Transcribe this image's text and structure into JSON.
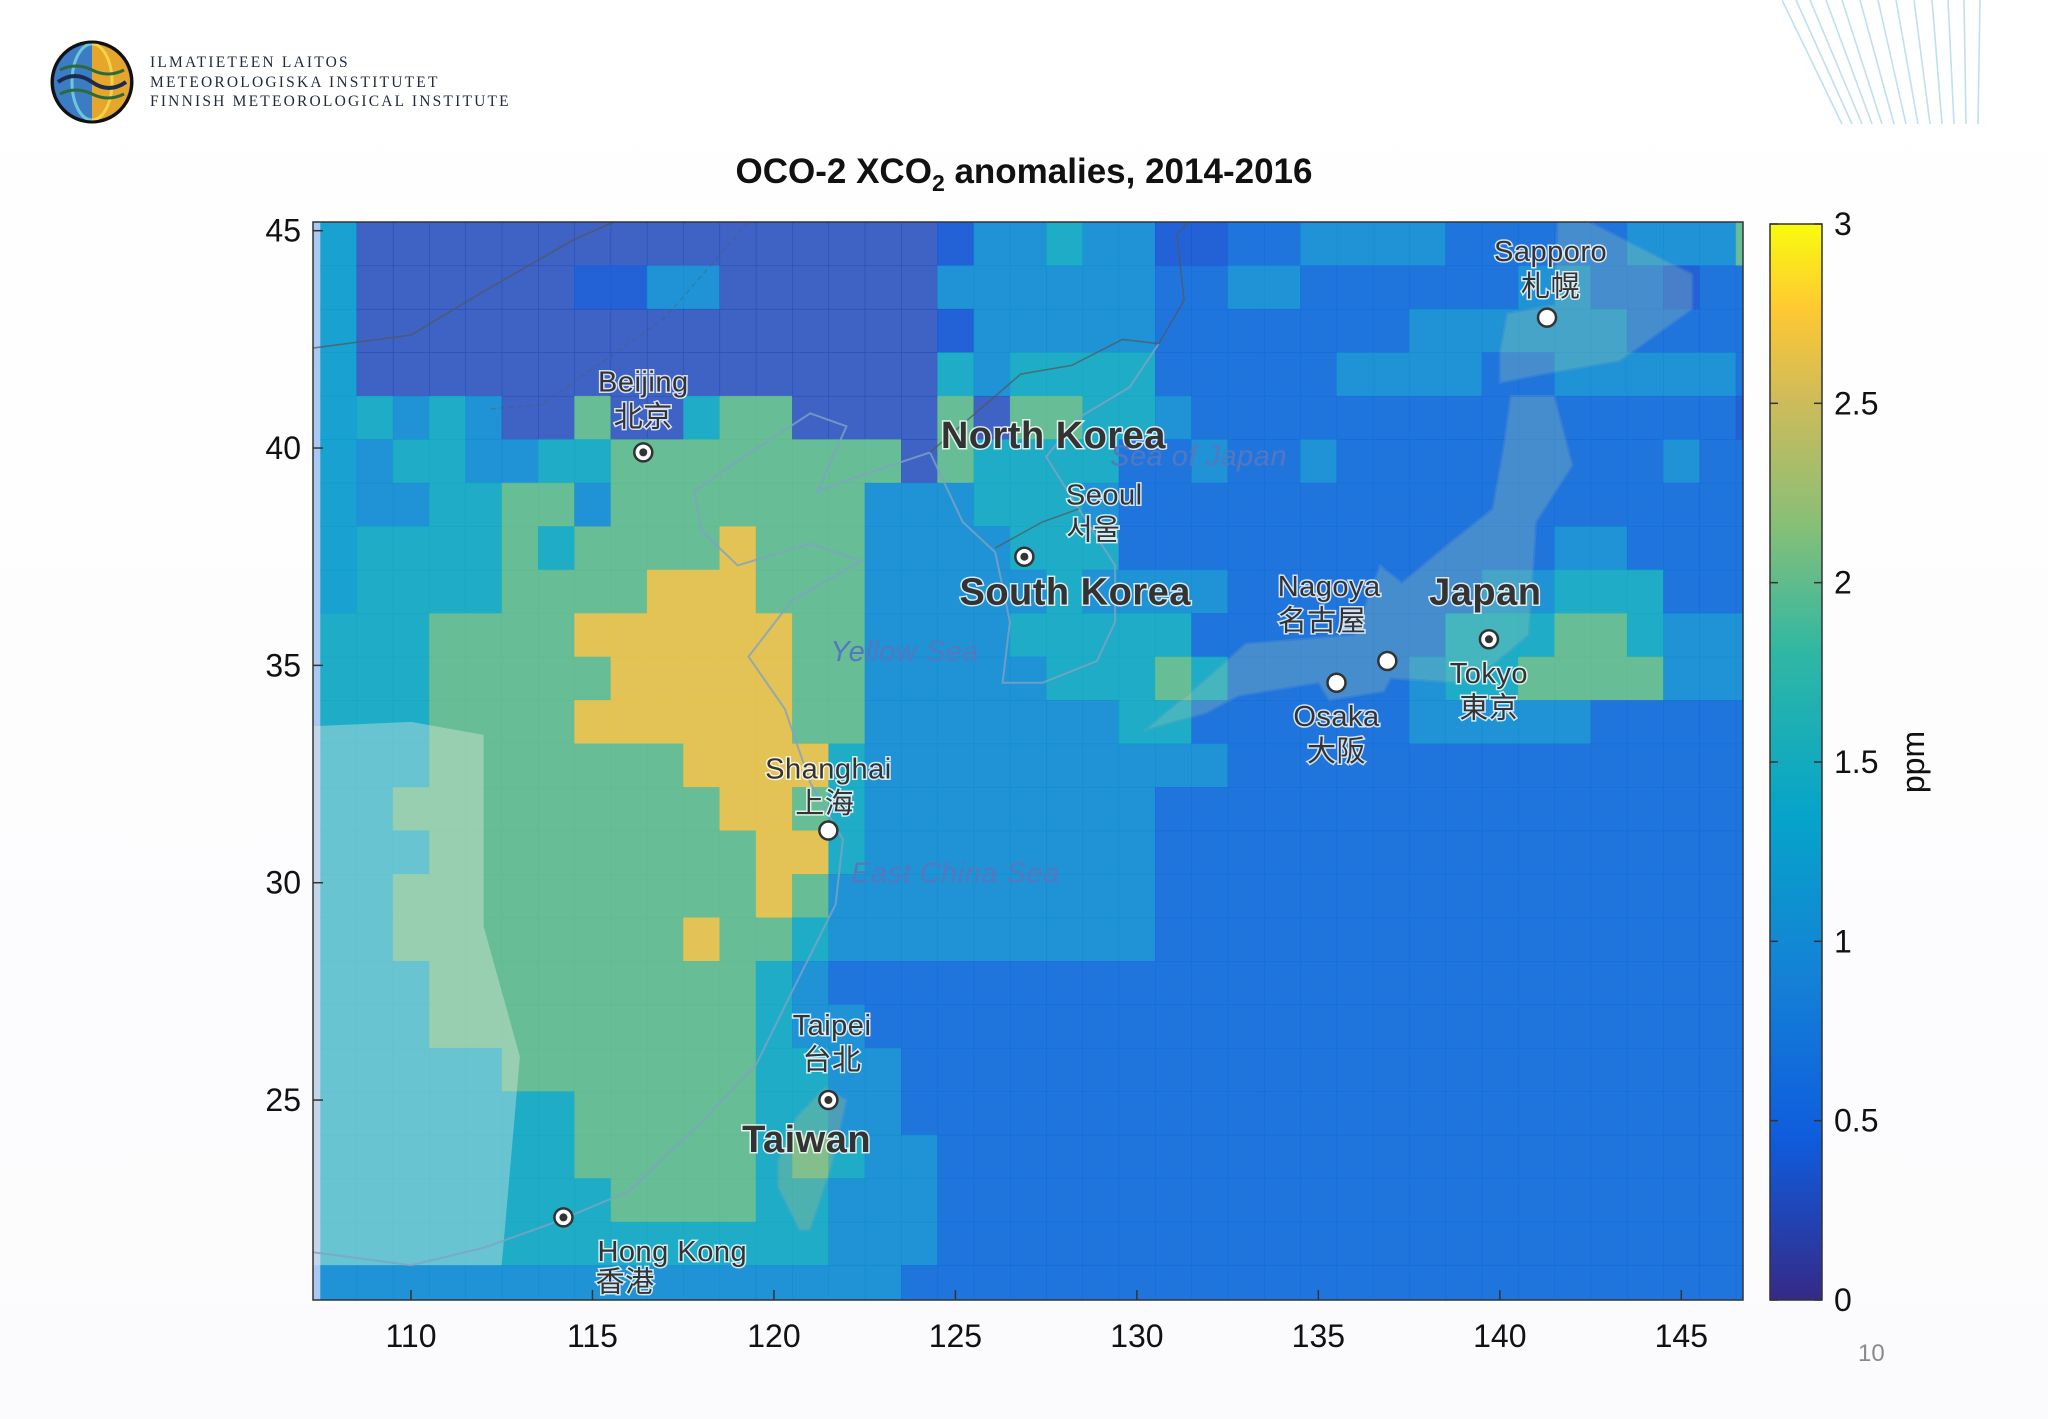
{
  "org": {
    "line1": "ILMATIETEEN LAITOS",
    "line2": "METEOROLOGISKA INSTITUTET",
    "line3": "FINNISH METEOROLOGICAL INSTITUTE",
    "logo_icon": "fmi-globe-logo-icon"
  },
  "chart_data": {
    "type": "heatmap",
    "title_main": "OCO-2 XCO",
    "title_sub": "2",
    "title_rest": " anomalies, 2014-2016",
    "x_ticks": [
      110,
      115,
      120,
      125,
      130,
      135,
      140,
      145
    ],
    "y_ticks": [
      25,
      30,
      35,
      40,
      45
    ],
    "xlim": [
      107.3,
      146.7
    ],
    "ylim": [
      20.4,
      45.2
    ],
    "colorbar": {
      "label": "ppm",
      "range": [
        0,
        3
      ],
      "ticks": [
        {
          "value": 0,
          "label": "0"
        },
        {
          "value": 0.5,
          "label": "0.5"
        },
        {
          "value": 1,
          "label": "1"
        },
        {
          "value": 1.5,
          "label": "1.5"
        },
        {
          "value": 2,
          "label": "2"
        },
        {
          "value": 2.5,
          "label": "2.5"
        },
        {
          "value": 3,
          "label": "3"
        }
      ],
      "colormap": "parula"
    },
    "grid_resolution_deg": 1,
    "color_field_rows": [
      "SXXXXXXXXXXXXXXXXDFFGFFDDEEFFFFEEEEEFFFHF",
      "SXXXXXXDDFFXXXXXXFFFFFFEEFFEEEEEEFFEEDEEF",
      "SXXXXXXXXXXXXXXXXDFFFFFEEEEEEEFFFFFFEEEEH",
      "SXXXXXXXXXXXXXXXXGFGGGGEEEEEFFFFEEFFFFFEG",
      "SGFGFXXHXXGHHXXXXHXHHGGFEEEEEEEEEEEEEEEDG",
      "SFGGFFGGHHHHHHHHXHGGGGEEFEEFEEEEEEEEEFEEE",
      "SFFGGHHFHHHHHHHFFFGGGFEEEEEEEEEEEEEEEEEEF",
      "SGGGGHGHHHHIHHHFFFFGGGEEEEEEEEEEEEFFEEEEF",
      "SGGGGHHHHIIIHHHFFFFFGFFFFEEEEEEEFFGGGEEEE",
      "GGGHHHHIIIIIIHHFFFFGGGGGEEEEEEEGGGHHGFFFE",
      "GGGHHHHHIIIIIHHFFFFFGGGHGEEEEEFGGHHHHFFFE",
      "GGGHHHHIIIIIIHHFFFFFFFGGEEEEEEFFFFFEEEEEE",
      "GGGHHHHHHHIIIIGFFFFFFFFFFEEEEEEEEEEEEEEEE",
      "GGHHHHHHHHHIIHGFFFFFFFFEEEEEEEEEEEEEEEEEE",
      "GGGHHHHHHHHHIIGFFFFFFFFEEEEEEEEEEEEEEEEEE",
      "GGHHHHHHHHHHIHFFFFFFFFFEEEEEEEEEEEEEEEEEE",
      "GGHHHHHHHHIHHGFFFFFFFFFEEEEEEEEEEEEEEEEEE",
      "GGGHHHHHHHHHGFEEEEEEEEEEEEEEEEEEEEEEEEEEE",
      "GGGHHHHHHHHHGFFEEEEEEEEEEEEEEEEEEEEEEEEEE",
      "GGGGGHHHHHHHGGFFEEEEEEEEEEEEEEEEEEEEEEEEE",
      "GGGGGGGHHHHHGGFFEEEEEEEEEEEEEEEEEEEEEEEEE",
      "GGGGGGGHHHHHGHGFFEEEEEEEEEEEEEEEEEEEEEEEE",
      "GGGGGGGGHHHHGGFFFEEEEEEEEEEEEEEEEEEEEEEEE",
      "GGGGGGGGGGGGGGFFFEEEEEEEEEEEEEEEEEEEEEEEE",
      "FFFFFFFFFFFFFFFFEEEEEEEEEEEEEEEEEEEEEEEEE"
    ],
    "cell_value_key": {
      "D": 0.4,
      "E": 0.65,
      "F": 1.05,
      "G": 1.45,
      "H": 2.0,
      "I": 2.65,
      "S": 1.25,
      "X": 0.25
    }
  },
  "map_labels": [
    {
      "text": "Beijing",
      "lon": 116.4,
      "lat": 41.3,
      "style": "city"
    },
    {
      "text": "北京",
      "lon": 116.4,
      "lat": 40.5,
      "style": "city-cjk"
    },
    {
      "text": "North Korea",
      "lon": 127.7,
      "lat": 40.0,
      "style": "country"
    },
    {
      "text": "Sea of Japan",
      "lon": 131.7,
      "lat": 39.6,
      "style": "sea"
    },
    {
      "text": "Seoul",
      "lon": 129.1,
      "lat": 38.7,
      "style": "city"
    },
    {
      "text": "서울",
      "lon": 128.8,
      "lat": 37.9,
      "style": "city-cjk"
    },
    {
      "text": "South Korea",
      "lon": 128.3,
      "lat": 36.4,
      "style": "country"
    },
    {
      "text": "Yellow Sea",
      "lon": 123.6,
      "lat": 35.1,
      "style": "sea"
    },
    {
      "text": "Nagoya",
      "lon": 135.3,
      "lat": 36.6,
      "style": "city"
    },
    {
      "text": "名古屋",
      "lon": 135.1,
      "lat": 35.8,
      "style": "city-cjk"
    },
    {
      "text": "Japan",
      "lon": 139.6,
      "lat": 36.4,
      "style": "country"
    },
    {
      "text": "Tokyo",
      "lon": 139.7,
      "lat": 34.6,
      "style": "city"
    },
    {
      "text": "東京",
      "lon": 139.7,
      "lat": 33.8,
      "style": "city-cjk"
    },
    {
      "text": "Osaka",
      "lon": 135.5,
      "lat": 33.6,
      "style": "city"
    },
    {
      "text": "大阪",
      "lon": 135.5,
      "lat": 32.8,
      "style": "city-cjk"
    },
    {
      "text": "Sapporo",
      "lon": 141.4,
      "lat": 44.3,
      "style": "city"
    },
    {
      "text": "札幌",
      "lon": 141.4,
      "lat": 43.5,
      "style": "city-cjk"
    },
    {
      "text": "Shanghai",
      "lon": 121.5,
      "lat": 32.4,
      "style": "city"
    },
    {
      "text": "上海",
      "lon": 121.4,
      "lat": 31.6,
      "style": "city-cjk"
    },
    {
      "text": "East China Sea",
      "lon": 125.0,
      "lat": 30.0,
      "style": "sea"
    },
    {
      "text": "Taipei",
      "lon": 121.6,
      "lat": 26.5,
      "style": "city"
    },
    {
      "text": "台北",
      "lon": 121.6,
      "lat": 25.7,
      "style": "city-cjk"
    },
    {
      "text": "Taiwan",
      "lon": 120.9,
      "lat": 23.8,
      "style": "country"
    },
    {
      "text": "Hong Kong",
      "lon": 117.2,
      "lat": 21.3,
      "style": "city"
    },
    {
      "text": "香港",
      "lon": 115.9,
      "lat": 20.6,
      "style": "city-cjk"
    }
  ],
  "city_markers": [
    {
      "name": "beijing",
      "lon": 116.4,
      "lat": 39.9,
      "type": "capital"
    },
    {
      "name": "seoul",
      "lon": 126.9,
      "lat": 37.5,
      "type": "capital"
    },
    {
      "name": "tokyo",
      "lon": 139.7,
      "lat": 35.6,
      "type": "capital"
    },
    {
      "name": "taipei",
      "lon": 121.5,
      "lat": 25.0,
      "type": "capital"
    },
    {
      "name": "nagoya",
      "lon": 136.9,
      "lat": 35.1,
      "type": "city"
    },
    {
      "name": "osaka",
      "lon": 135.5,
      "lat": 34.6,
      "type": "city"
    },
    {
      "name": "sapporo",
      "lon": 141.3,
      "lat": 43.0,
      "type": "city"
    },
    {
      "name": "shanghai",
      "lon": 121.5,
      "lat": 31.2,
      "type": "city"
    },
    {
      "name": "hong-kong",
      "lon": 114.2,
      "lat": 22.3,
      "type": "capital"
    }
  ],
  "page_number": "10"
}
